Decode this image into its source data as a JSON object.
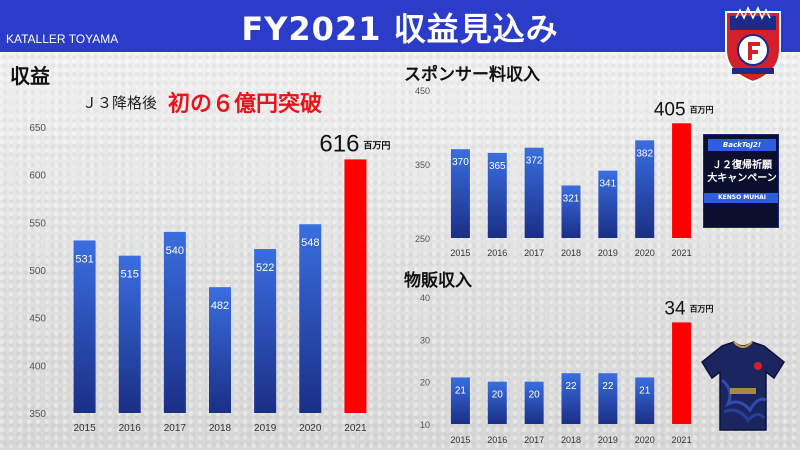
{
  "header": {
    "title": "FY2021 収益見込み",
    "brand": "KATALLER TOYAMA"
  },
  "main_section": {
    "title": "収益",
    "subtitle": "Ｊ３降格後",
    "highlight": "初の６億円突破"
  },
  "sponsor_section": {
    "title": "スポンサー料収入"
  },
  "merch_section": {
    "title": "物販収入"
  },
  "banner": {
    "top": "BackToJ2!",
    "main_line1": "Ｊ２復帰祈願",
    "main_line2": "大キャンペーン",
    "sub": "KENSO MUHAI"
  },
  "colors": {
    "header_bg": "#2a3cc8",
    "bar_gradient_top": "#3a6ee0",
    "bar_gradient_bottom": "#1a2f86",
    "highlight_bar": "#ff0000",
    "highlight_text": "#e8141b"
  },
  "chart_data": [
    {
      "type": "bar",
      "name": "revenue",
      "categories": [
        "2015",
        "2016",
        "2017",
        "2018",
        "2019",
        "2020",
        "2021"
      ],
      "values": [
        531,
        515,
        540,
        482,
        522,
        548,
        616
      ],
      "ylim": [
        350,
        650
      ],
      "yticks": [
        350,
        400,
        450,
        500,
        550,
        600,
        650
      ],
      "unit": "百万円",
      "highlight_index": 6
    },
    {
      "type": "bar",
      "name": "sponsor",
      "categories": [
        "2015",
        "2016",
        "2017",
        "2018",
        "2019",
        "2020",
        "2021"
      ],
      "values": [
        370,
        365,
        372,
        321,
        341,
        382,
        405
      ],
      "ylim": [
        250,
        450
      ],
      "yticks": [
        250,
        350,
        450
      ],
      "unit": "百万円",
      "highlight_index": 6
    },
    {
      "type": "bar",
      "name": "merchandise",
      "categories": [
        "2015",
        "2016",
        "2017",
        "2018",
        "2019",
        "2020",
        "2021"
      ],
      "values": [
        21,
        20,
        20,
        22,
        22,
        21,
        34
      ],
      "ylim": [
        10,
        40
      ],
      "yticks": [
        10,
        20,
        30,
        40
      ],
      "unit": "百万円",
      "highlight_index": 6
    }
  ]
}
